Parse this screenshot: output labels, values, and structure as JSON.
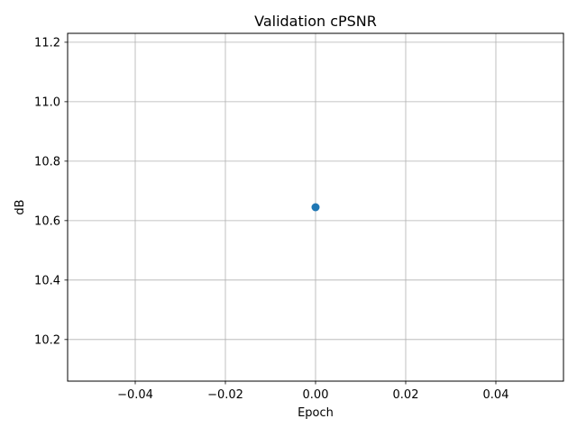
{
  "chart_data": {
    "type": "scatter",
    "title": "Validation cPSNR",
    "xlabel": "Epoch",
    "ylabel": "dB",
    "xlim": [
      -0.055,
      0.055
    ],
    "ylim": [
      10.06,
      11.23
    ],
    "x_ticks": [
      -0.04,
      -0.02,
      0.0,
      0.02,
      0.04
    ],
    "x_tick_labels": [
      "−0.04",
      "−0.02",
      "0.00",
      "0.02",
      "0.04"
    ],
    "y_ticks": [
      10.2,
      10.4,
      10.6,
      10.8,
      11.0,
      11.2
    ],
    "y_tick_labels": [
      "10.2",
      "10.4",
      "10.6",
      "10.8",
      "11.0",
      "11.2"
    ],
    "grid": true,
    "series": [
      {
        "color": "#1f77b4",
        "x": [
          0.0
        ],
        "y": [
          10.645
        ]
      }
    ]
  }
}
